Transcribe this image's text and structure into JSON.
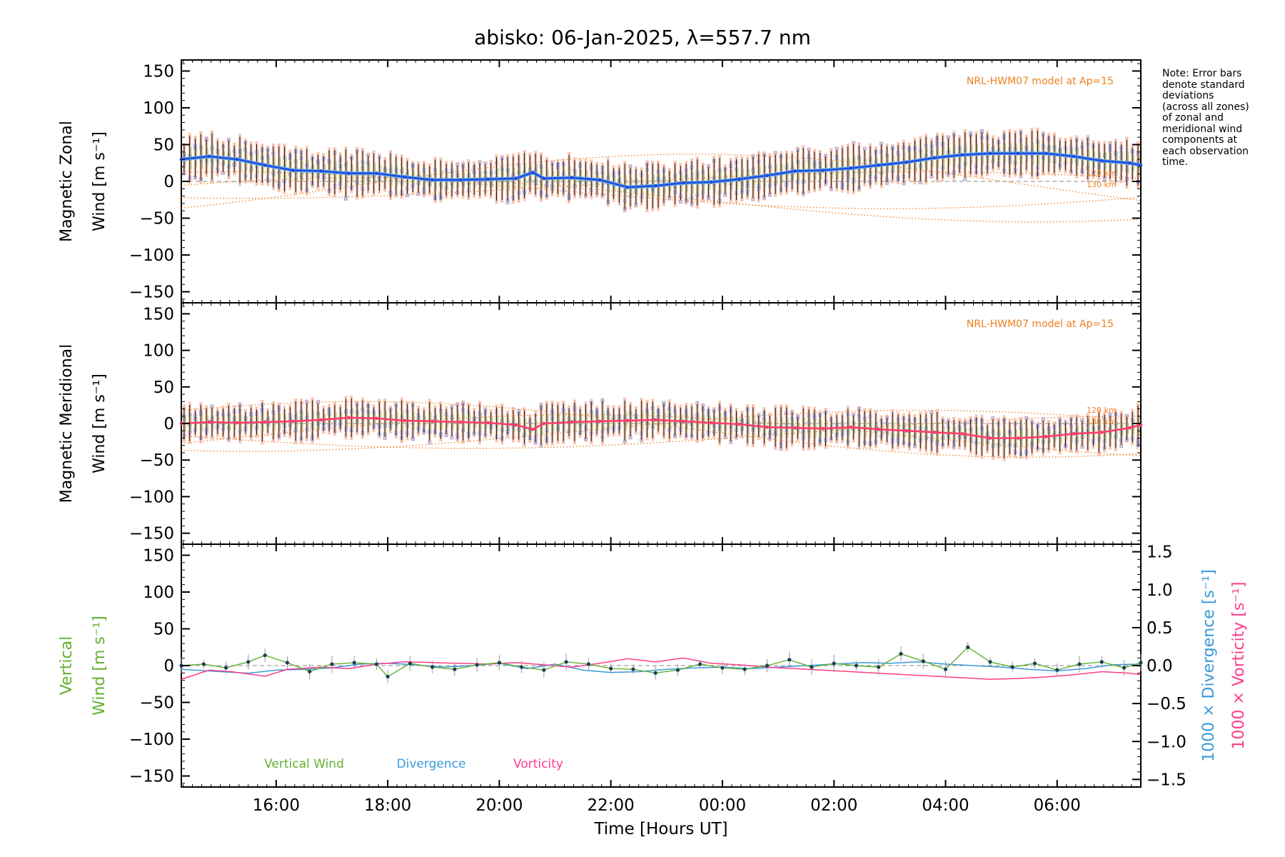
{
  "title": "abisko: 06-Jan-2025, λ=557.7 nm",
  "note_lines": [
    "Note: Error bars",
    "denote standard",
    "deviations",
    "(across all zones)",
    "of zonal and",
    "meridional wind",
    "components at",
    "each observation",
    "time."
  ],
  "colors": {
    "zonal": "#1f4fe0",
    "zonal_light": "#6aaee6",
    "meridional": "#ff3c6a",
    "model": "#f08020",
    "vertical": "#63b030",
    "divergence": "#3a9ad9",
    "vorticity": "#ff3c8a",
    "error_bar": "#111111",
    "scatter_lav": "#a8a8dc",
    "scatter_sal": "#f7b59a"
  },
  "chart_data": [
    {
      "type": "line",
      "panel": "zonal",
      "ylabel_line1": "Magnetic Zonal",
      "ylabel_line2": "Wind [m s⁻¹]",
      "annotation": "NRL-HWM07 model at Ap=15",
      "model_labels": [
        "120 km",
        "130 km"
      ],
      "ylim": [
        -165,
        165
      ],
      "yticks": [
        -150,
        -100,
        -50,
        0,
        50,
        100,
        150
      ],
      "xlim": [
        14.3,
        31.5
      ],
      "x_ticks": [
        16,
        18,
        20,
        22,
        24,
        26,
        28,
        30
      ],
      "x_tick_labels": [
        "16:00",
        "18:00",
        "20:00",
        "22:00",
        "00:00",
        "02:00",
        "04:00",
        "06:00"
      ],
      "mean_wind": {
        "x": [
          14.3,
          14.8,
          15.3,
          15.8,
          16.3,
          16.8,
          17.3,
          17.8,
          18.3,
          18.8,
          19.3,
          19.8,
          20.3,
          20.6,
          20.8,
          21.3,
          21.8,
          22.3,
          22.8,
          23.3,
          23.8,
          24.3,
          24.8,
          25.3,
          25.8,
          26.3,
          26.8,
          27.3,
          27.8,
          28.3,
          28.8,
          29.3,
          29.8,
          30.3,
          30.8,
          31.3,
          31.5
        ],
        "y": [
          30,
          34,
          30,
          22,
          15,
          14,
          11,
          11,
          6,
          2,
          2,
          3,
          4,
          12,
          4,
          5,
          2,
          -8,
          -6,
          -2,
          -1,
          3,
          8,
          14,
          15,
          18,
          22,
          26,
          32,
          36,
          38,
          38,
          38,
          34,
          28,
          25,
          22
        ]
      },
      "model": {
        "sinusoids": [
          {
            "offset": -5,
            "amplitude": 42,
            "phase_hr": 23.5
          },
          {
            "offset": -25,
            "amplitude": 30,
            "phase_hr": 17.6
          },
          {
            "offset": -12,
            "amplitude": 25,
            "phase_hr": 15.0
          },
          {
            "offset": -5,
            "amplitude": 18,
            "phase_hr": 27.5
          }
        ],
        "end_values": {
          "120 km": 15,
          "130 km": 0
        }
      }
    },
    {
      "type": "line",
      "panel": "meridional",
      "ylabel_line1": "Magnetic Meridional",
      "ylabel_line2": "Wind [m s⁻¹]",
      "annotation": "NRL-HWM07 model at Ap=15",
      "model_labels": [
        "120 km",
        "130 km"
      ],
      "ylim": [
        -165,
        165
      ],
      "yticks": [
        -150,
        -100,
        -50,
        0,
        50,
        100,
        150
      ],
      "mean_wind": {
        "x": [
          14.3,
          14.8,
          15.3,
          15.8,
          16.3,
          16.8,
          17.3,
          17.8,
          18.3,
          18.8,
          19.3,
          19.8,
          20.3,
          20.6,
          20.8,
          21.3,
          21.8,
          22.3,
          22.8,
          23.3,
          23.8,
          24.3,
          24.8,
          25.3,
          25.8,
          26.3,
          26.8,
          27.3,
          27.8,
          28.3,
          28.8,
          29.3,
          29.8,
          30.3,
          30.8,
          31.3,
          31.5
        ],
        "y": [
          0,
          2,
          1,
          2,
          3,
          5,
          8,
          7,
          4,
          3,
          2,
          1,
          -2,
          -8,
          0,
          2,
          3,
          4,
          5,
          3,
          1,
          -1,
          -5,
          -6,
          -7,
          -5,
          -8,
          -10,
          -12,
          -14,
          -20,
          -20,
          -18,
          -14,
          -12,
          -6,
          -2
        ]
      },
      "model": {
        "sinusoids": [
          {
            "offset": -8,
            "amplitude": 38,
            "phase_hr": 17.5
          },
          {
            "offset": -18,
            "amplitude": 30,
            "phase_hr": 21.5
          },
          {
            "offset": -10,
            "amplitude": 28,
            "phase_hr": 27.5
          },
          {
            "offset": -12,
            "amplitude": 22,
            "phase_hr": 31.5
          }
        ]
      }
    },
    {
      "type": "line",
      "panel": "vertical",
      "ylabel_line1": "Vertical",
      "ylabel_line2": "Wind [m s⁻¹]",
      "right_label_1": "1000 × Divergence [s⁻¹]",
      "right_label_2": "1000 × Vorticity [s⁻¹]",
      "ylim": [
        -165,
        165
      ],
      "yticks": [
        -150,
        -100,
        -50,
        0,
        50,
        100,
        150
      ],
      "y2lim": [
        -1.6,
        1.6
      ],
      "y2ticks": [
        -1.5,
        -1.0,
        -0.5,
        0.0,
        0.5,
        1.0,
        1.5
      ],
      "y2tick_labels": [
        "−1.5",
        "−1.0",
        "−0.5",
        "0.0",
        "0.5",
        "1.0",
        "1.5"
      ],
      "legend": [
        "Vertical Wind",
        "Divergence",
        "Vorticity"
      ],
      "vertical_wind": {
        "x": [
          14.3,
          14.7,
          15.1,
          15.5,
          15.8,
          16.2,
          16.6,
          17.0,
          17.4,
          17.8,
          18.0,
          18.4,
          18.8,
          19.2,
          19.6,
          20.0,
          20.4,
          20.8,
          21.2,
          21.6,
          22.0,
          22.4,
          22.8,
          23.2,
          23.6,
          24.0,
          24.4,
          24.8,
          25.2,
          25.6,
          26.0,
          26.4,
          26.8,
          27.2,
          27.6,
          28.0,
          28.4,
          28.8,
          29.2,
          29.6,
          30.0,
          30.4,
          30.8,
          31.2,
          31.5
        ],
        "y": [
          0,
          2,
          -3,
          5,
          14,
          4,
          -8,
          2,
          4,
          2,
          -15,
          3,
          -2,
          -5,
          1,
          4,
          -2,
          -6,
          5,
          2,
          -4,
          -5,
          -10,
          -6,
          2,
          -3,
          -5,
          0,
          8,
          -2,
          3,
          0,
          -2,
          16,
          6,
          -5,
          25,
          5,
          -2,
          3,
          -6,
          2,
          5,
          -3,
          4
        ]
      },
      "divergence": {
        "x": [
          14.3,
          15.0,
          15.5,
          16.0,
          16.5,
          17.0,
          17.5,
          18.0,
          18.5,
          19.0,
          19.5,
          20.0,
          20.5,
          21.0,
          21.5,
          22.0,
          22.5,
          23.0,
          23.5,
          24.0,
          24.5,
          25.0,
          25.5,
          26.0,
          26.5,
          27.0,
          27.5,
          28.0,
          28.5,
          29.0,
          29.5,
          30.0,
          30.5,
          31.0,
          31.5
        ],
        "y": [
          -0.05,
          -0.08,
          -0.1,
          -0.06,
          -0.05,
          -0.03,
          0.02,
          0.03,
          0.01,
          -0.02,
          0.0,
          0.03,
          -0.04,
          0.02,
          -0.06,
          -0.09,
          -0.08,
          -0.05,
          -0.03,
          -0.02,
          -0.04,
          -0.02,
          0.0,
          0.02,
          0.04,
          0.03,
          0.05,
          0.02,
          0.0,
          -0.02,
          -0.05,
          -0.07,
          -0.04,
          0.01,
          0.02
        ]
      },
      "vorticity": {
        "x": [
          14.3,
          14.8,
          15.2,
          15.8,
          16.2,
          16.8,
          17.3,
          17.8,
          18.3,
          18.8,
          19.3,
          19.8,
          20.3,
          20.8,
          21.3,
          21.8,
          22.3,
          22.8,
          23.3,
          23.8,
          24.3,
          24.8,
          25.3,
          25.8,
          26.3,
          26.8,
          27.3,
          27.8,
          28.3,
          28.8,
          29.3,
          29.8,
          30.3,
          30.8,
          31.3,
          31.5
        ],
        "y": [
          -0.18,
          -0.06,
          -0.08,
          -0.14,
          -0.05,
          -0.02,
          -0.04,
          0.02,
          0.05,
          0.04,
          0.03,
          0.02,
          0.04,
          0.01,
          -0.02,
          0.03,
          0.09,
          0.05,
          0.1,
          0.03,
          0.01,
          -0.02,
          -0.04,
          -0.06,
          -0.08,
          -0.1,
          -0.12,
          -0.14,
          -0.16,
          -0.18,
          -0.17,
          -0.15,
          -0.12,
          -0.08,
          -0.1,
          -0.12
        ]
      }
    }
  ],
  "xlabel": "Time [Hours UT]"
}
